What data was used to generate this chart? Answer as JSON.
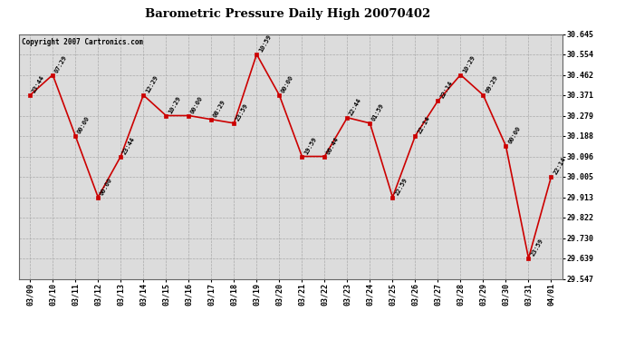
{
  "title": "Barometric Pressure Daily High 20070402",
  "copyright": "Copyright 2007 Cartronics.com",
  "background_color": "#ffffff",
  "plot_bg_color": "#dcdcdc",
  "line_color": "#cc0000",
  "marker_color": "#cc0000",
  "grid_color": "#aaaaaa",
  "dates": [
    "03/09",
    "03/10",
    "03/11",
    "03/12",
    "03/13",
    "03/14",
    "03/15",
    "03/16",
    "03/17",
    "03/18",
    "03/19",
    "03/20",
    "03/21",
    "03/22",
    "03/23",
    "03/24",
    "03/25",
    "03/26",
    "03/27",
    "03/28",
    "03/29",
    "03/30",
    "03/31",
    "04/01"
  ],
  "values": [
    30.371,
    30.462,
    30.188,
    29.913,
    30.096,
    30.371,
    30.279,
    30.279,
    30.262,
    30.245,
    30.554,
    30.371,
    30.096,
    30.096,
    30.27,
    30.245,
    29.913,
    30.188,
    30.345,
    30.462,
    30.371,
    30.143,
    29.639,
    30.005
  ],
  "time_labels": [
    "23:44",
    "07:29",
    "00:00",
    "00:00",
    "23:44",
    "12:29",
    "10:29",
    "00:00",
    "08:29",
    "23:59",
    "10:59",
    "00:00",
    "19:59",
    "06:44",
    "22:44",
    "01:59",
    "22:59",
    "22:14",
    "22:14",
    "10:29",
    "09:29",
    "00:00",
    "23:59",
    "22:14"
  ],
  "ylim_min": 29.547,
  "ylim_max": 30.645,
  "yticks": [
    29.547,
    29.639,
    29.73,
    29.822,
    29.913,
    30.005,
    30.096,
    30.188,
    30.279,
    30.371,
    30.462,
    30.554,
    30.645
  ]
}
